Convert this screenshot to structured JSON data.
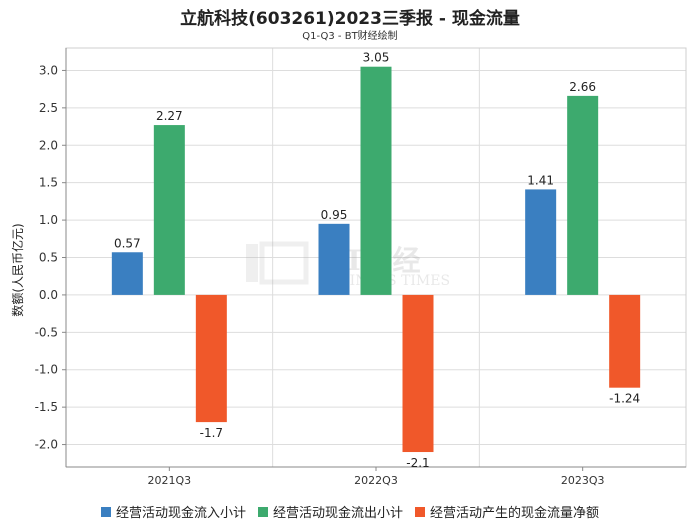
{
  "header": {
    "title": "立航科技(603261)2023三季报 - 现金流量",
    "subtitle": "Q1-Q3 - BT财经绘制"
  },
  "watermark": {
    "logo_text": "BT财经",
    "logo_sub": "BUSINESS TIMES"
  },
  "chart_data": {
    "type": "bar",
    "categories": [
      "2021Q3",
      "2022Q3",
      "2023Q3"
    ],
    "series": [
      {
        "name": "经营活动现金流入小计",
        "values": [
          0.57,
          0.95,
          1.41
        ],
        "color": "#3a7fc1",
        "labels": [
          "0.57",
          "0.95",
          "1.41"
        ]
      },
      {
        "name": "经营活动现金流出小计",
        "values": [
          2.27,
          3.05,
          2.66
        ],
        "color": "#3daa6e",
        "labels": [
          "2.27",
          "3.05",
          "2.66"
        ]
      },
      {
        "name": "经营活动产生的现金流量净额",
        "values": [
          -1.7,
          -2.1,
          -1.24
        ],
        "color": "#f0582a",
        "labels": [
          "-1.7",
          "-2.1",
          "-1.24"
        ]
      }
    ],
    "ylabel": "数额(人民币亿元)",
    "ylim": [
      -2.3,
      3.3
    ],
    "yticks": [
      "3.0",
      "2.5",
      "2.0",
      "1.5",
      "1.0",
      "0.5",
      "0.0",
      "-0.5",
      "-1.0",
      "-1.5",
      "-2.0"
    ],
    "ytick_values": [
      3.0,
      2.5,
      2.0,
      1.5,
      1.0,
      0.5,
      0.0,
      -0.5,
      -1.0,
      -1.5,
      -2.0
    ],
    "grid": true,
    "legend_position": "bottom"
  }
}
